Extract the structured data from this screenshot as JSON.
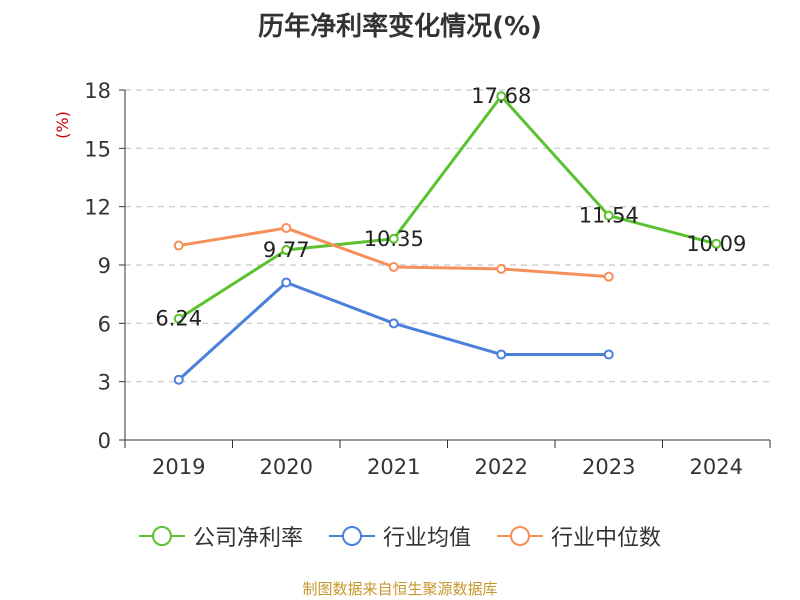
{
  "chart_data": {
    "type": "line",
    "title": "历年净利率变化情况(%)",
    "ylabel": "(%)",
    "categories": [
      "2019",
      "2020",
      "2021",
      "2022",
      "2023",
      "2024"
    ],
    "yticks": [
      0,
      3,
      6,
      9,
      12,
      15,
      18
    ],
    "ylim": [
      0,
      18
    ],
    "grid": true,
    "legend_position": "bottom",
    "series": [
      {
        "name": "公司净利率",
        "color": "#5ac12f",
        "values": [
          6.24,
          9.77,
          10.35,
          17.68,
          11.54,
          10.09
        ],
        "labels": [
          "6.24",
          "9.77",
          "10.35",
          "17.68",
          "11.54",
          "10.09"
        ]
      },
      {
        "name": "行业均值",
        "color": "#4a7fdb",
        "values": [
          3.1,
          8.1,
          6.0,
          4.4,
          4.4,
          null
        ]
      },
      {
        "name": "行业中位数",
        "color": "#f5905a",
        "values": [
          10.0,
          10.9,
          8.9,
          8.8,
          8.4,
          null
        ]
      }
    ]
  },
  "source": "制图数据来自恒生聚源数据库"
}
